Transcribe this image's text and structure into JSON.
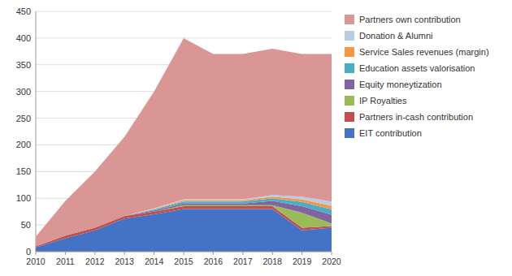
{
  "chart_data": {
    "type": "area",
    "stacked": true,
    "grid": true,
    "legend": "right",
    "x": [
      2010,
      2011,
      2012,
      2013,
      2014,
      2015,
      2016,
      2017,
      2018,
      2019,
      2020
    ],
    "xlim": [
      2010,
      2020
    ],
    "xticks": [
      2010,
      2011,
      2012,
      2013,
      2014,
      2015,
      2016,
      2017,
      2018,
      2019,
      2020
    ],
    "ylim": [
      0,
      450
    ],
    "yticks": [
      0,
      50,
      100,
      150,
      200,
      250,
      300,
      350,
      400,
      450
    ],
    "series": [
      {
        "name": "EIT contribution",
        "color": "#4472C4",
        "values": [
          8,
          25,
          40,
          62,
          70,
          80,
          80,
          80,
          80,
          40,
          45
        ]
      },
      {
        "name": "Partners in-cash contribution",
        "color": "#C0504D",
        "values": [
          2,
          5,
          5,
          5,
          5,
          5,
          5,
          5,
          5,
          5,
          3
        ]
      },
      {
        "name": "IP Royalties",
        "color": "#9BBB59",
        "values": [
          0,
          0,
          0,
          0,
          0,
          2,
          2,
          2,
          2,
          28,
          5
        ]
      },
      {
        "name": "Equity moneytization",
        "color": "#8064A2",
        "values": [
          0,
          0,
          0,
          0,
          2,
          3,
          3,
          3,
          8,
          12,
          16
        ]
      },
      {
        "name": "Education assets valorisation",
        "color": "#4BACC6",
        "values": [
          0,
          0,
          0,
          0,
          2,
          4,
          4,
          4,
          5,
          8,
          10
        ]
      },
      {
        "name": "Service Sales revenues (margin)",
        "color": "#F79646",
        "values": [
          0,
          0,
          0,
          0,
          1,
          2,
          2,
          2,
          3,
          5,
          7
        ]
      },
      {
        "name": "Donation & Alumni",
        "color": "#B8CCE4",
        "values": [
          0,
          0,
          0,
          0,
          1,
          2,
          2,
          2,
          3,
          5,
          8
        ]
      },
      {
        "name": "Partners own contribution",
        "color": "#D99694",
        "values": [
          18,
          65,
          105,
          148,
          219,
          302,
          272,
          272,
          274,
          267,
          276
        ]
      }
    ]
  }
}
